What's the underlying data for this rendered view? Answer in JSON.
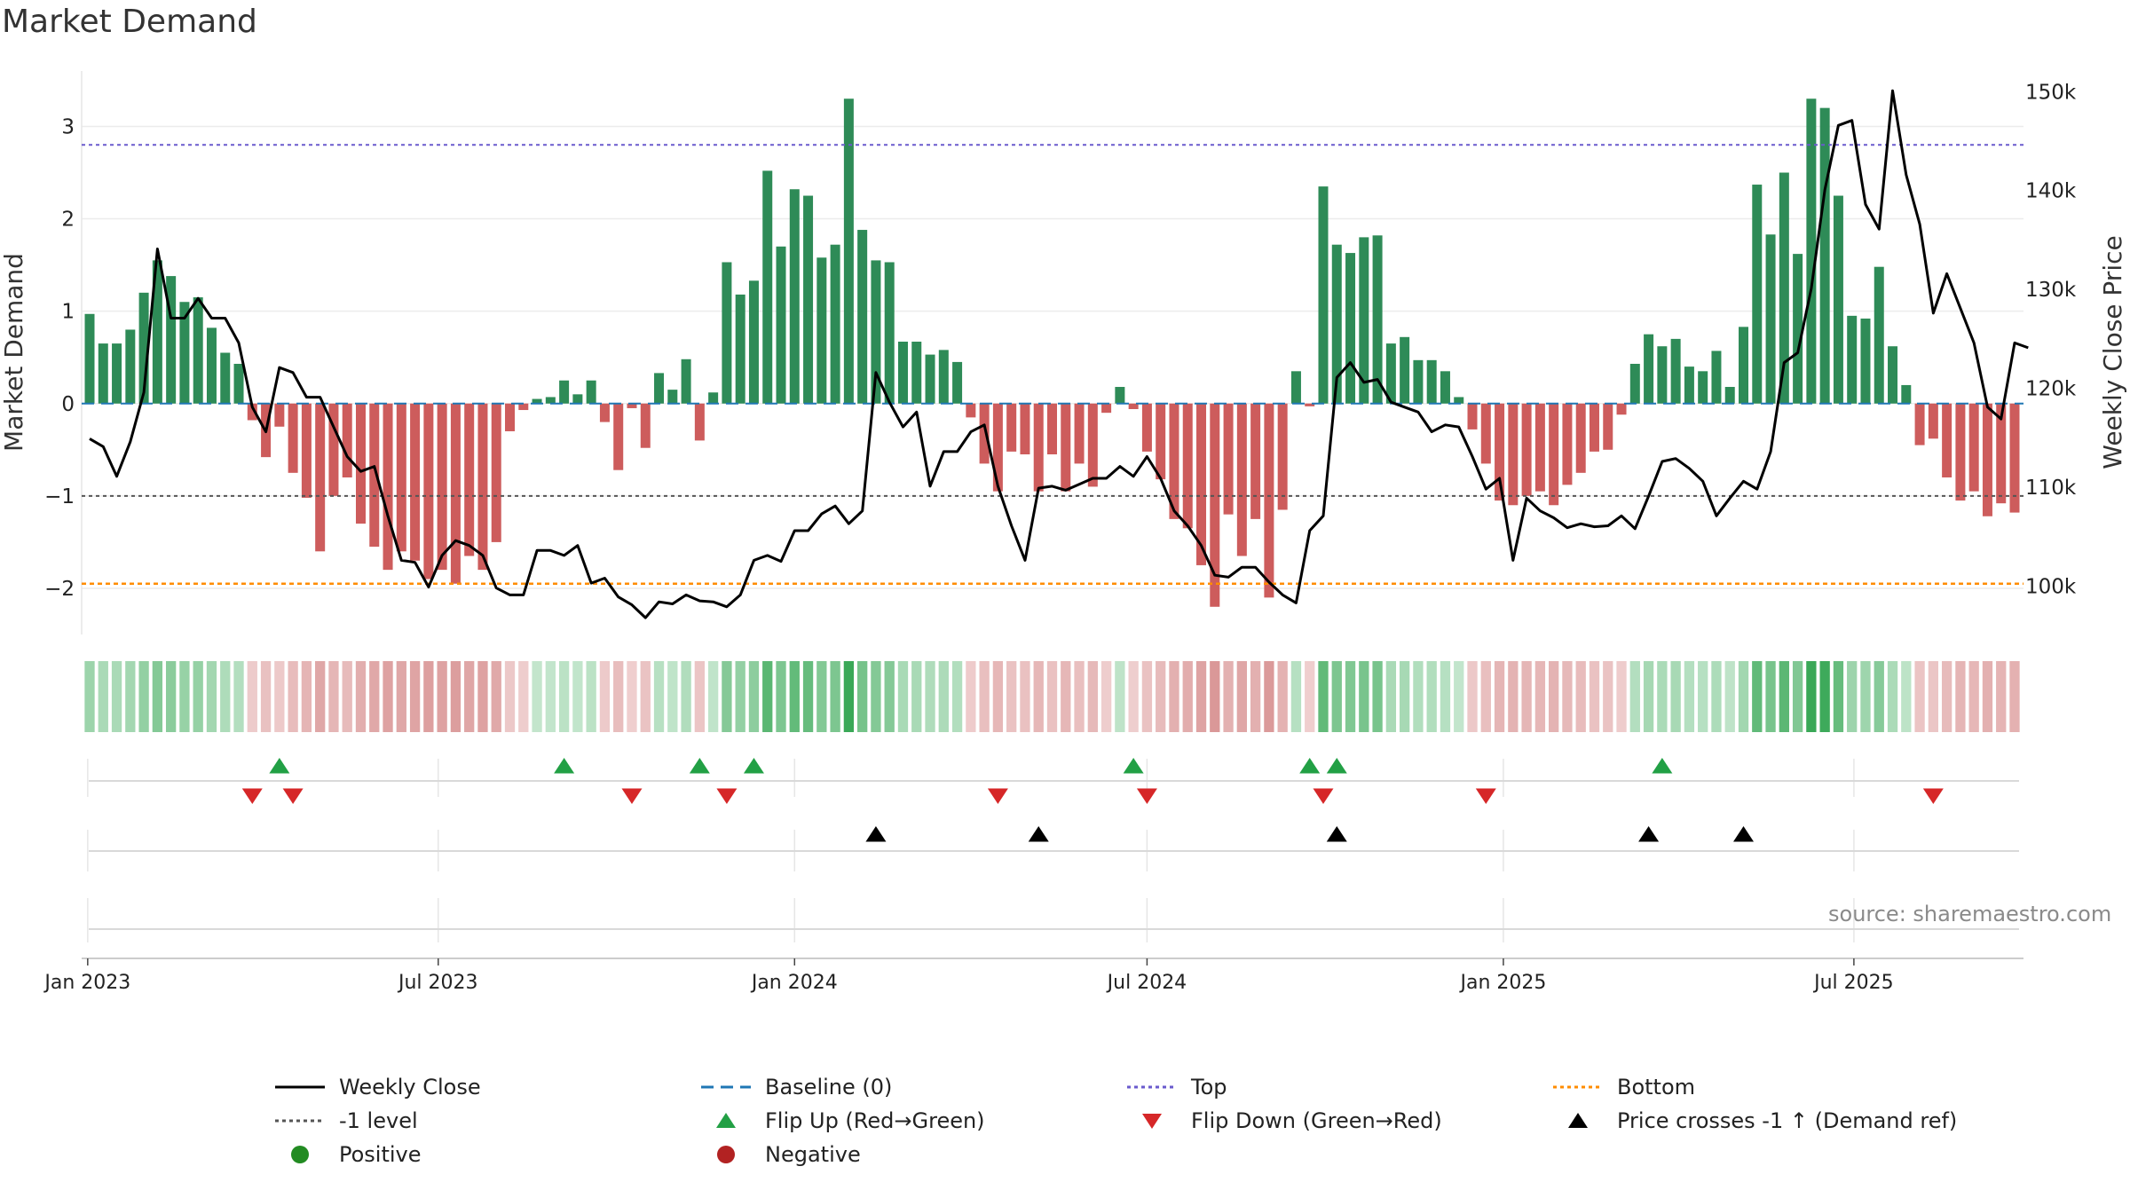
{
  "title": "Market Demand",
  "source": "source: sharemaestro.com",
  "colors": {
    "positive_bar": "#2e8b57",
    "negative_bar": "#cd5c5c",
    "price_line": "#000000",
    "baseline": "#1f77b4",
    "top_line": "#6a5acd",
    "bottom_line": "#ff8c00",
    "minus1_line": "#555555",
    "flip_up": "#22a045",
    "flip_down": "#d62728",
    "cross_marker": "#000000",
    "positive_dot": "#228b22",
    "negative_dot": "#b22222"
  },
  "chart_data": {
    "type": "bar",
    "title": "Market Demand",
    "xlabel": "",
    "ylabel": "Market Demand",
    "y2label": "Weekly Close Price",
    "x_start": "2023-01-02",
    "week_step_days": 7,
    "ylim": [
      -2.5,
      3.6
    ],
    "y_ticks": [
      3,
      2,
      1,
      0,
      -1,
      -2
    ],
    "y_tick_labels": [
      "3",
      "2",
      "1",
      "0",
      "−1",
      "−2"
    ],
    "y2lim": [
      95000,
      152000
    ],
    "y2_ticks": [
      150000,
      140000,
      130000,
      120000,
      110000,
      100000
    ],
    "y2_tick_labels": [
      "150k",
      "140k",
      "130k",
      "120k",
      "110k",
      "100k"
    ],
    "x_ticks": [
      "2023-01-01",
      "2023-07-01",
      "2024-01-01",
      "2024-07-01",
      "2025-01-01",
      "2025-07-01"
    ],
    "x_tick_labels": [
      "Jan 2023",
      "Jul 2023",
      "Jan 2024",
      "Jul 2024",
      "Jan 2025",
      "Jul 2025"
    ],
    "reference_lines": {
      "baseline": 0,
      "top": 2.8,
      "minus1": -1,
      "bottom": -1.95
    },
    "series": [
      {
        "name": "Market Demand",
        "type": "bar",
        "values": [
          0.97,
          0.65,
          0.65,
          0.8,
          1.2,
          1.55,
          1.38,
          1.1,
          1.15,
          0.82,
          0.55,
          0.43,
          -0.18,
          -0.58,
          -0.25,
          -0.75,
          -1.02,
          -1.6,
          -1.0,
          -0.8,
          -1.3,
          -1.55,
          -1.8,
          -1.6,
          -1.7,
          -1.9,
          -1.8,
          -1.95,
          -1.65,
          -1.8,
          -1.5,
          -0.3,
          -0.07,
          0.05,
          0.07,
          0.25,
          0.1,
          0.25,
          -0.2,
          -0.72,
          -0.05,
          -0.48,
          0.33,
          0.15,
          0.48,
          -0.4,
          0.12,
          1.53,
          1.18,
          1.33,
          2.52,
          1.7,
          2.32,
          2.25,
          1.58,
          1.72,
          3.3,
          1.88,
          1.55,
          1.53,
          0.67,
          0.67,
          0.53,
          0.58,
          0.45,
          -0.15,
          -0.65,
          -0.95,
          -0.52,
          -0.55,
          -0.95,
          -0.55,
          -0.95,
          -0.65,
          -0.9,
          -0.1,
          0.18,
          -0.06,
          -0.52,
          -0.82,
          -1.25,
          -1.35,
          -1.75,
          -2.2,
          -1.2,
          -1.65,
          -1.25,
          -2.1,
          -1.15,
          0.35,
          -0.03,
          2.35,
          1.72,
          1.63,
          1.8,
          1.82,
          0.65,
          0.72,
          0.47,
          0.47,
          0.35,
          0.07,
          -0.28,
          -0.65,
          -1.05,
          -1.1,
          -1.0,
          -0.95,
          -1.1,
          -0.88,
          -0.75,
          -0.52,
          -0.5,
          -0.12,
          0.43,
          0.75,
          0.62,
          0.7,
          0.4,
          0.35,
          0.57,
          0.18,
          0.83,
          2.37,
          1.83,
          2.5,
          1.62,
          3.3,
          3.2,
          2.25,
          0.95,
          0.92,
          1.48,
          0.62,
          0.2,
          -0.45,
          -0.38,
          -0.8,
          -1.05,
          -0.95,
          -1.22,
          -1.08,
          -1.18
        ]
      },
      {
        "name": "Weekly Close",
        "type": "line",
        "values": [
          114800,
          114000,
          111000,
          114500,
          119500,
          134000,
          127000,
          127000,
          129000,
          127000,
          127000,
          124500,
          118000,
          115500,
          122000,
          121500,
          119000,
          119000,
          116000,
          113000,
          111500,
          112000,
          107000,
          102500,
          102300,
          99800,
          103000,
          104500,
          104000,
          103000,
          99700,
          99000,
          99000,
          103500,
          103500,
          103000,
          104000,
          100200,
          100700,
          98800,
          98000,
          96700,
          98300,
          98100,
          99000,
          98400,
          98300,
          97800,
          99000,
          102500,
          103000,
          102400,
          105500,
          105500,
          107200,
          108000,
          106200,
          107500,
          121500,
          118500,
          116000,
          117500,
          110000,
          113500,
          113500,
          115500,
          116200,
          110000,
          106000,
          102500,
          109800,
          110000,
          109600,
          110200,
          110800,
          110800,
          112000,
          111000,
          113000,
          110800,
          107500,
          106000,
          104000,
          101000,
          100800,
          101800,
          101800,
          100300,
          99000,
          98200,
          105500,
          107000,
          121000,
          122500,
          120500,
          120800,
          118500,
          118000,
          117500,
          115500,
          116200,
          116000,
          113000,
          109700,
          110800,
          102500,
          108800,
          107500,
          106800,
          105800,
          106200,
          105900,
          106000,
          107000,
          105700,
          109000,
          112500,
          112800,
          111800,
          110500,
          107000,
          108800,
          110500,
          109700,
          113500,
          122500,
          123500,
          130000,
          140000,
          146500,
          147000,
          138500,
          136000,
          150000,
          141500,
          136500,
          127500,
          131500,
          128000,
          124500,
          118000,
          116800,
          124500,
          124000
        ]
      },
      {
        "name": "Flip Up (Red→Green)",
        "type": "scatter",
        "x_weeks": [
          14,
          35,
          45,
          49,
          77,
          90,
          92,
          116
        ]
      },
      {
        "name": "Flip Down (Green→Red)",
        "type": "scatter",
        "x_weeks": [
          12,
          15,
          40,
          47,
          67,
          78,
          91,
          103,
          136
        ]
      },
      {
        "name": "Price crosses -1 ↑ (Demand ref)",
        "type": "scatter",
        "x_weeks": [
          58,
          70,
          92,
          115,
          122
        ]
      }
    ]
  },
  "legend": [
    {
      "key": "weekly_close",
      "label": "Weekly Close",
      "symbol": "line-solid",
      "color": "#000000"
    },
    {
      "key": "baseline",
      "label": "Baseline (0)",
      "symbol": "line-dash",
      "color": "#1f77b4"
    },
    {
      "key": "top",
      "label": "Top",
      "symbol": "line-dot",
      "color": "#6a5acd"
    },
    {
      "key": "bottom",
      "label": "Bottom",
      "symbol": "line-dot",
      "color": "#ff8c00"
    },
    {
      "key": "minus1",
      "label": "-1 level",
      "symbol": "line-dot",
      "color": "#555555"
    },
    {
      "key": "flip_up",
      "label": "Flip Up (Red→Green)",
      "symbol": "triangle-up",
      "color": "#22a045"
    },
    {
      "key": "flip_down",
      "label": "Flip Down (Green→Red)",
      "symbol": "triangle-down",
      "color": "#d62728"
    },
    {
      "key": "cross",
      "label": "Price crosses -1 ↑ (Demand ref)",
      "symbol": "triangle-up",
      "color": "#000000"
    },
    {
      "key": "positive",
      "label": "Positive",
      "symbol": "dot",
      "color": "#228b22"
    },
    {
      "key": "negative",
      "label": "Negative",
      "symbol": "dot",
      "color": "#b22222"
    }
  ]
}
